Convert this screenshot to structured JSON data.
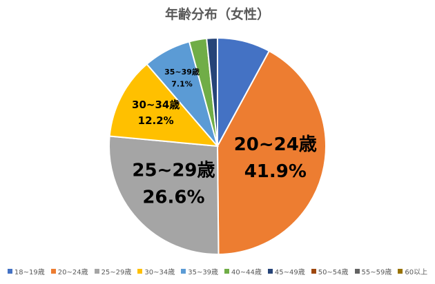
{
  "chart_data": {
    "type": "pie",
    "title": "年齢分布（女性）",
    "categories": [
      "18~19歳",
      "20~24歳",
      "25~29歳",
      "30~34歳",
      "35~39歳",
      "40~44歳",
      "45~49歳",
      "50~54歳",
      "55~59歳",
      "60以上"
    ],
    "values": [
      7.9,
      41.9,
      26.6,
      12.2,
      7.1,
      2.6,
      1.6,
      0.0,
      0.0,
      0.0
    ],
    "value_labels": [
      "",
      "41.9%",
      "26.6%",
      "12.2%",
      "7.1%",
      "",
      "",
      "",
      "",
      ""
    ],
    "slice_labels": [
      "",
      "20~24歳",
      "25~29歳",
      "30~34歳",
      "35~39歳",
      "",
      "",
      "",
      "",
      ""
    ],
    "colors": [
      "#4472C4",
      "#ED7D31",
      "#A5A5A5",
      "#FFC000",
      "#5B9BD5",
      "#70AD47",
      "#264478",
      "#9E480E",
      "#636363",
      "#997300"
    ],
    "legend_position": "bottom"
  }
}
